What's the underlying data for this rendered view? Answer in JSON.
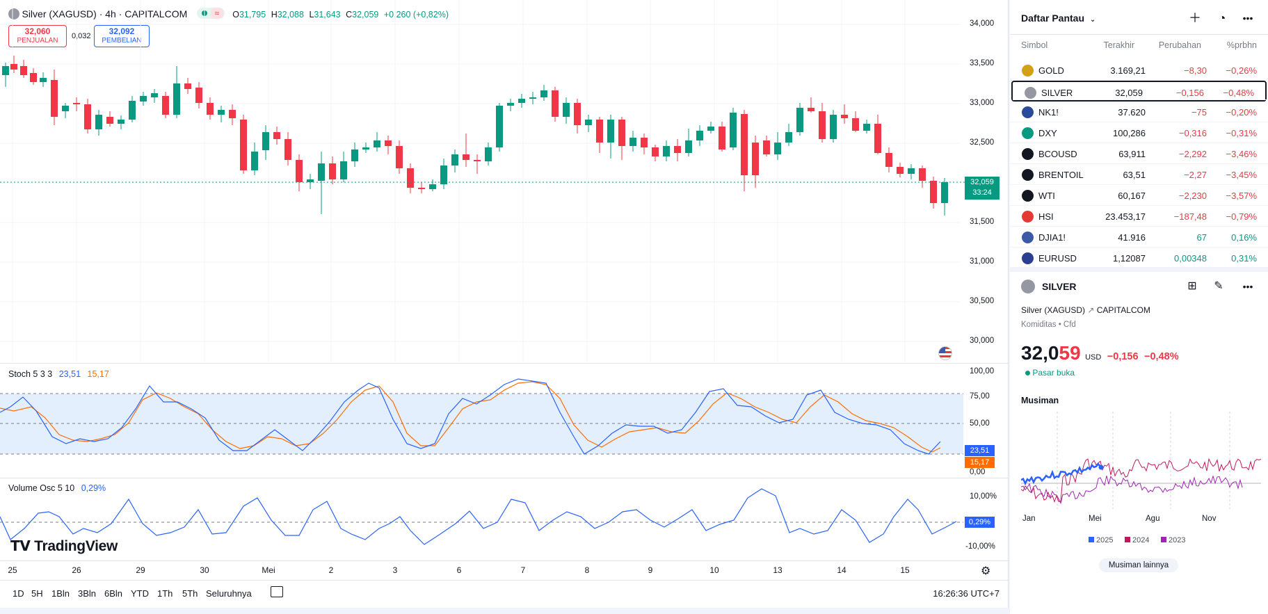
{
  "colors": {
    "up": "#089981",
    "down": "#f23645",
    "blue": "#2962ff",
    "orange": "#ff6d00",
    "y2025": "#2962ff",
    "y2024": "#c2185b",
    "y2023": "#9c27b0"
  },
  "header": {
    "symbol": "Silver (XAGUSD) · 4h · CAPITALCOM",
    "o_label": "O",
    "o": "31,795",
    "h_label": "H",
    "h": "32,088",
    "l_label": "L",
    "l": "31,643",
    "c_label": "C",
    "c": "32,059",
    "change": "+0,260 (+0,82%)"
  },
  "trade": {
    "sell_value": "32,060",
    "sell_label": "PENJUALAN",
    "spread": "0,032",
    "buy_value": "32,092",
    "buy_label": "PEMBELIAN"
  },
  "price_axis": [
    "34,000",
    "33,500",
    "33,000",
    "32,500",
    "32,000",
    "31,500",
    "31,000",
    "30,500",
    "30,000"
  ],
  "last_price": {
    "value": "32,059",
    "countdown": "33:24"
  },
  "stoch": {
    "label": "Stoch 5 3 3",
    "k": "23,51",
    "d": "15,17",
    "axis": [
      "100,00",
      "75,00",
      "50,00",
      "0,00"
    ]
  },
  "volosc": {
    "label": "Volume Osc 5 10",
    "value": "0,29%",
    "axis": [
      "10,00%",
      "-10,00%"
    ]
  },
  "time_axis": [
    "25",
    "26",
    "29",
    "30",
    "Mei",
    "2",
    "3",
    "6",
    "7",
    "8",
    "9",
    "10",
    "13",
    "14",
    "15"
  ],
  "timeframes": [
    "1D",
    "5H",
    "1Bln",
    "3Bln",
    "6Bln",
    "YTD",
    "1Th",
    "5Th",
    "Seluruhnya"
  ],
  "clock": "16:26:36 UTC+7",
  "logo": "TradingView",
  "watchlist": {
    "title": "Daftar Pantau",
    "columns": [
      "Simbol",
      "Terakhir",
      "Perubahan",
      "%prbhn"
    ],
    "rows": [
      {
        "sym": "GOLD",
        "last": "3.169,21",
        "chg": "−8,30",
        "pct": "−0,26%",
        "icon": "gold-icon",
        "color": "#d4a017",
        "dir": "neg"
      },
      {
        "sym": "SILVER",
        "last": "32,059",
        "chg": "−0,156",
        "pct": "−0,48%",
        "icon": "silver-icon",
        "color": "#9598a1",
        "dir": "neg"
      },
      {
        "sym": "NK1!",
        "last": "37.620",
        "chg": "−75",
        "pct": "−0,20%",
        "icon": "nikkei-icon",
        "color": "#2a4a9a",
        "dir": "neg"
      },
      {
        "sym": "DXY",
        "last": "100,286",
        "chg": "−0,316",
        "pct": "−0,31%",
        "icon": "dollar-icon",
        "color": "#089981",
        "dir": "neg"
      },
      {
        "sym": "BCOUSD",
        "last": "63,911",
        "chg": "−2,292",
        "pct": "−3,46%",
        "icon": "oil-drop-icon",
        "color": "#131722",
        "dir": "neg"
      },
      {
        "sym": "BRENTOIL",
        "last": "63,51",
        "chg": "−2,27",
        "pct": "−3,45%",
        "icon": "oil-drop-icon",
        "color": "#131722",
        "dir": "neg"
      },
      {
        "sym": "WTI",
        "last": "60,167",
        "chg": "−2,230",
        "pct": "−3,57%",
        "icon": "oil-drop-icon",
        "color": "#131722",
        "dir": "neg"
      },
      {
        "sym": "HSI",
        "last": "23.453,17",
        "chg": "−187,48",
        "pct": "−0,79%",
        "icon": "hsi-icon",
        "color": "#e53935",
        "dir": "neg"
      },
      {
        "sym": "DJIA1!",
        "last": "41.916",
        "chg": "67",
        "pct": "0,16%",
        "icon": "us-flag-icon",
        "color": "#3c5aa6",
        "dir": "pos"
      },
      {
        "sym": "EURUSD",
        "last": "1,12087",
        "chg": "0,00348",
        "pct": "0,31%",
        "icon": "eu-flag-icon",
        "color": "#2c3e8f",
        "dir": "pos"
      }
    ]
  },
  "details": {
    "symbol": "SILVER",
    "full_name": "Silver (XAGUSD)",
    "exchange": "CAPITALCOM",
    "category": "Komiditas",
    "type": "Cfd",
    "price_main": "32,0",
    "price_tail": "59",
    "currency": "USD",
    "change": "−0,156",
    "change_pct": "−0,48%",
    "market_status": "Pasar buka",
    "seasonal_title": "Musiman",
    "seasonal_months": [
      "Jan",
      "Mei",
      "Agu",
      "Nov"
    ],
    "seasonal_legend": [
      "2025",
      "2024",
      "2023"
    ],
    "more_button": "Musiman lainnya"
  }
}
